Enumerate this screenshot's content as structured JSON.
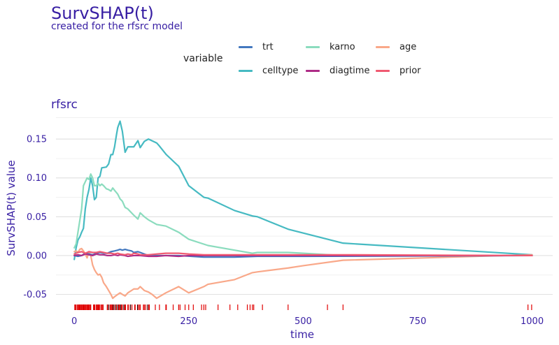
{
  "title": "SurvSHAP(t)",
  "subtitle": "created for the rfsrc model",
  "facet_label": "rfsrc",
  "legend": {
    "title": "variable",
    "items": [
      {
        "label": "trt",
        "color": "#4378bf"
      },
      {
        "label": "karno",
        "color": "#8bdcbe"
      },
      {
        "label": "age",
        "color": "#f9a889"
      },
      {
        "label": "celltype",
        "color": "#46bac2"
      },
      {
        "label": "diagtime",
        "color": "#ae2c87"
      },
      {
        "label": "prior",
        "color": "#f05a71"
      }
    ]
  },
  "chart_data": {
    "type": "line",
    "title": "SurvSHAP(t)",
    "subtitle": "created for the rfsrc model",
    "xlabel": "time",
    "ylabel": "SurvSHAP(t) value",
    "xlim": [
      -40,
      1045
    ],
    "ylim": [
      -0.063,
      0.178
    ],
    "xticks": [
      0,
      250,
      500,
      750,
      1000
    ],
    "xtick_labels": [
      "0",
      "250",
      "500",
      "750",
      "1000"
    ],
    "yticks": [
      -0.05,
      0,
      0.05,
      0.1,
      0.15
    ],
    "ytick_labels": [
      "-0.05",
      "0.00",
      "0.05",
      "0.10",
      "0.15"
    ],
    "grid": true,
    "legend_position": "top",
    "series": [
      {
        "name": "celltype",
        "color": "#46bac2",
        "points": [
          [
            0,
            -0.005
          ],
          [
            4,
            0.01
          ],
          [
            8,
            0.02
          ],
          [
            12,
            0.024
          ],
          [
            16,
            0.03
          ],
          [
            20,
            0.035
          ],
          [
            24,
            0.06
          ],
          [
            28,
            0.075
          ],
          [
            32,
            0.085
          ],
          [
            36,
            0.1
          ],
          [
            40,
            0.09
          ],
          [
            44,
            0.072
          ],
          [
            48,
            0.075
          ],
          [
            52,
            0.1
          ],
          [
            56,
            0.102
          ],
          [
            60,
            0.113
          ],
          [
            70,
            0.114
          ],
          [
            75,
            0.118
          ],
          [
            80,
            0.13
          ],
          [
            84,
            0.13
          ],
          [
            88,
            0.14
          ],
          [
            92,
            0.155
          ],
          [
            95,
            0.165
          ],
          [
            100,
            0.173
          ],
          [
            105,
            0.16
          ],
          [
            111,
            0.133
          ],
          [
            117,
            0.14
          ],
          [
            130,
            0.14
          ],
          [
            139,
            0.148
          ],
          [
            144,
            0.139
          ],
          [
            153,
            0.147
          ],
          [
            162,
            0.15
          ],
          [
            180,
            0.145
          ],
          [
            186,
            0.141
          ],
          [
            201,
            0.13
          ],
          [
            228,
            0.115
          ],
          [
            250,
            0.09
          ],
          [
            283,
            0.075
          ],
          [
            292,
            0.074
          ],
          [
            350,
            0.058
          ],
          [
            389,
            0.051
          ],
          [
            400,
            0.05
          ],
          [
            467,
            0.034
          ],
          [
            587,
            0.016
          ],
          [
            1000,
            0.001
          ]
        ]
      },
      {
        "name": "karno",
        "color": "#8bdcbe",
        "points": [
          [
            0,
            0.01
          ],
          [
            4,
            0.015
          ],
          [
            8,
            0.03
          ],
          [
            12,
            0.045
          ],
          [
            16,
            0.06
          ],
          [
            20,
            0.09
          ],
          [
            24,
            0.095
          ],
          [
            28,
            0.1
          ],
          [
            32,
            0.098
          ],
          [
            36,
            0.105
          ],
          [
            40,
            0.1
          ],
          [
            44,
            0.09
          ],
          [
            48,
            0.09
          ],
          [
            52,
            0.093
          ],
          [
            56,
            0.09
          ],
          [
            60,
            0.092
          ],
          [
            64,
            0.09
          ],
          [
            70,
            0.086
          ],
          [
            75,
            0.085
          ],
          [
            80,
            0.083
          ],
          [
            84,
            0.087
          ],
          [
            88,
            0.084
          ],
          [
            95,
            0.079
          ],
          [
            100,
            0.073
          ],
          [
            105,
            0.07
          ],
          [
            111,
            0.062
          ],
          [
            117,
            0.06
          ],
          [
            125,
            0.055
          ],
          [
            130,
            0.052
          ],
          [
            139,
            0.047
          ],
          [
            144,
            0.055
          ],
          [
            153,
            0.05
          ],
          [
            162,
            0.046
          ],
          [
            180,
            0.04
          ],
          [
            200,
            0.038
          ],
          [
            228,
            0.03
          ],
          [
            250,
            0.021
          ],
          [
            292,
            0.013
          ],
          [
            350,
            0.007
          ],
          [
            389,
            0.003
          ],
          [
            400,
            0.004
          ],
          [
            467,
            0.004
          ],
          [
            500,
            0.003
          ],
          [
            587,
            0.0
          ],
          [
            1000,
            0.0
          ]
        ]
      },
      {
        "name": "age",
        "color": "#f9a889",
        "points": [
          [
            0,
            0.005
          ],
          [
            4,
            0.006
          ],
          [
            8,
            0.004
          ],
          [
            12,
            0.008
          ],
          [
            16,
            0.009
          ],
          [
            20,
            0.006
          ],
          [
            24,
            0.002
          ],
          [
            28,
            -0.003
          ],
          [
            32,
            0.005
          ],
          [
            36,
            0.0
          ],
          [
            40,
            -0.012
          ],
          [
            44,
            -0.018
          ],
          [
            48,
            -0.022
          ],
          [
            52,
            -0.025
          ],
          [
            56,
            -0.024
          ],
          [
            60,
            -0.028
          ],
          [
            64,
            -0.035
          ],
          [
            70,
            -0.04
          ],
          [
            75,
            -0.045
          ],
          [
            80,
            -0.05
          ],
          [
            84,
            -0.055
          ],
          [
            88,
            -0.053
          ],
          [
            95,
            -0.05
          ],
          [
            100,
            -0.048
          ],
          [
            105,
            -0.05
          ],
          [
            111,
            -0.052
          ],
          [
            117,
            -0.048
          ],
          [
            125,
            -0.045
          ],
          [
            130,
            -0.043
          ],
          [
            139,
            -0.043
          ],
          [
            144,
            -0.04
          ],
          [
            153,
            -0.045
          ],
          [
            162,
            -0.047
          ],
          [
            170,
            -0.05
          ],
          [
            180,
            -0.055
          ],
          [
            200,
            -0.048
          ],
          [
            228,
            -0.04
          ],
          [
            250,
            -0.048
          ],
          [
            283,
            -0.04
          ],
          [
            292,
            -0.037
          ],
          [
            350,
            -0.031
          ],
          [
            389,
            -0.022
          ],
          [
            400,
            -0.021
          ],
          [
            467,
            -0.016
          ],
          [
            500,
            -0.013
          ],
          [
            587,
            -0.006
          ],
          [
            1000,
            0.001
          ]
        ]
      },
      {
        "name": "trt",
        "color": "#4378bf",
        "points": [
          [
            0,
            0.0
          ],
          [
            8,
            -0.001
          ],
          [
            16,
            0.0
          ],
          [
            24,
            0.003
          ],
          [
            32,
            0.002
          ],
          [
            40,
            0.001
          ],
          [
            48,
            0.003
          ],
          [
            56,
            0.004
          ],
          [
            64,
            0.003
          ],
          [
            72,
            0.003
          ],
          [
            80,
            0.005
          ],
          [
            88,
            0.006
          ],
          [
            95,
            0.007
          ],
          [
            100,
            0.008
          ],
          [
            105,
            0.007
          ],
          [
            111,
            0.008
          ],
          [
            117,
            0.007
          ],
          [
            125,
            0.006
          ],
          [
            130,
            0.004
          ],
          [
            139,
            0.005
          ],
          [
            144,
            0.004
          ],
          [
            153,
            0.002
          ],
          [
            162,
            0.0
          ],
          [
            180,
            0.0
          ],
          [
            200,
            0.0
          ],
          [
            228,
            0.0
          ],
          [
            283,
            -0.002
          ],
          [
            350,
            -0.002
          ],
          [
            400,
            -0.001
          ],
          [
            500,
            -0.001
          ],
          [
            1000,
            0.0
          ]
        ]
      },
      {
        "name": "diagtime",
        "color": "#ae2c87",
        "points": [
          [
            0,
            0.0
          ],
          [
            8,
            0.001
          ],
          [
            16,
            0.0
          ],
          [
            24,
            0.002
          ],
          [
            32,
            0.001
          ],
          [
            40,
            0.0
          ],
          [
            48,
            0.002
          ],
          [
            56,
            0.001
          ],
          [
            64,
            0.001
          ],
          [
            72,
            0.0
          ],
          [
            80,
            0.0
          ],
          [
            88,
            0.001
          ],
          [
            95,
            0.0
          ],
          [
            100,
            0.001
          ],
          [
            111,
            0.0
          ],
          [
            117,
            -0.001
          ],
          [
            130,
            0.0
          ],
          [
            144,
            0.0
          ],
          [
            162,
            -0.001
          ],
          [
            180,
            -0.001
          ],
          [
            200,
            0.0
          ],
          [
            228,
            -0.001
          ],
          [
            250,
            0.0
          ],
          [
            283,
            0.0
          ],
          [
            350,
            0.0
          ],
          [
            400,
            0.0
          ],
          [
            500,
            0.0
          ],
          [
            1000,
            0.0
          ]
        ]
      },
      {
        "name": "prior",
        "color": "#f05a71",
        "points": [
          [
            0,
            0.002
          ],
          [
            8,
            0.004
          ],
          [
            16,
            0.005
          ],
          [
            24,
            0.003
          ],
          [
            32,
            0.005
          ],
          [
            40,
            0.004
          ],
          [
            48,
            0.004
          ],
          [
            56,
            0.005
          ],
          [
            64,
            0.004
          ],
          [
            72,
            0.003
          ],
          [
            80,
            0.003
          ],
          [
            88,
            0.002
          ],
          [
            95,
            0.003
          ],
          [
            100,
            0.002
          ],
          [
            111,
            0.001
          ],
          [
            117,
            0.002
          ],
          [
            125,
            0.001
          ],
          [
            130,
            0.003
          ],
          [
            139,
            0.002
          ],
          [
            144,
            0.001
          ],
          [
            153,
            0.001
          ],
          [
            162,
            0.001
          ],
          [
            180,
            0.002
          ],
          [
            200,
            0.003
          ],
          [
            228,
            0.003
          ],
          [
            250,
            0.002
          ],
          [
            283,
            0.001
          ],
          [
            350,
            0.001
          ],
          [
            400,
            0.001
          ],
          [
            500,
            0.001
          ],
          [
            587,
            0.001
          ],
          [
            1000,
            0.0
          ]
        ]
      }
    ],
    "rug_times": [
      1,
      3,
      4,
      7,
      8,
      10,
      11,
      12,
      13,
      15,
      16,
      18,
      19,
      20,
      21,
      22,
      24,
      25,
      27,
      29,
      30,
      31,
      33,
      35,
      36,
      42,
      43,
      44,
      45,
      48,
      49,
      51,
      52,
      53,
      54,
      56,
      59,
      61,
      63,
      72,
      73,
      78,
      80,
      82,
      83,
      84,
      87,
      90,
      92,
      95,
      97,
      99,
      100,
      103,
      105,
      110,
      111,
      112,
      117,
      118,
      122,
      126,
      132,
      133,
      139,
      140,
      143,
      144,
      151,
      153,
      156,
      162,
      164,
      177,
      186,
      200,
      201,
      216,
      228,
      231,
      242,
      250,
      260,
      278,
      283,
      287,
      314,
      340,
      357,
      378,
      384,
      389,
      392,
      411,
      467,
      553,
      587,
      991,
      999
    ],
    "rug_color": "#e00000"
  }
}
